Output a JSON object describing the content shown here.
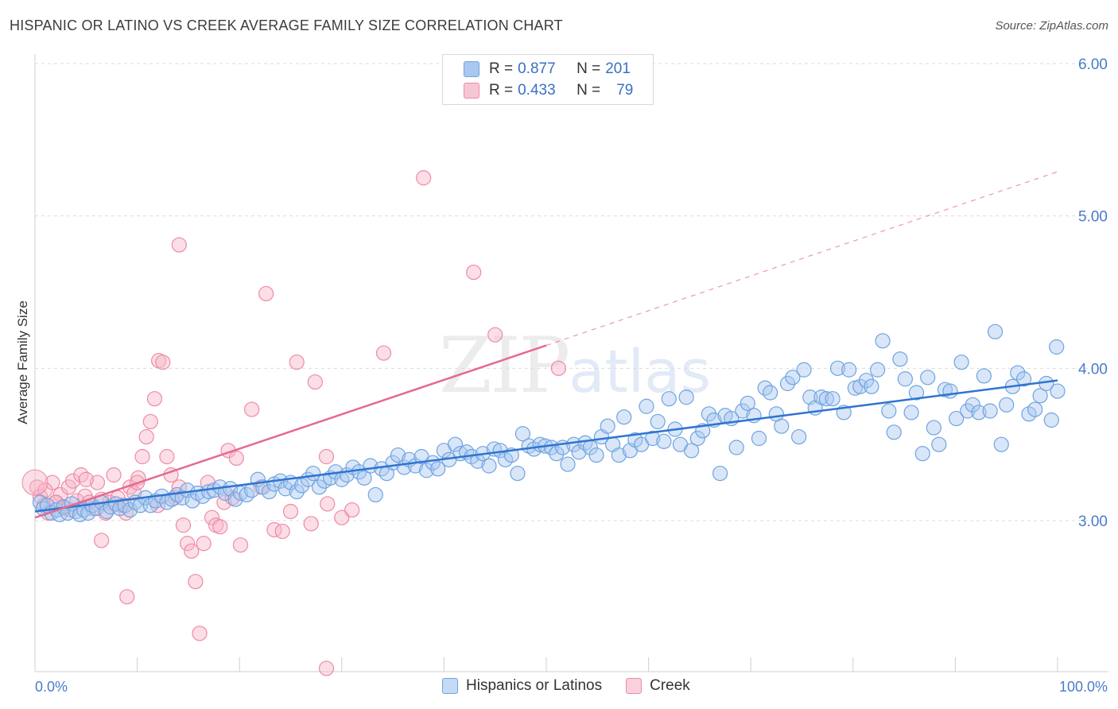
{
  "title": "HISPANIC OR LATINO VS CREEK AVERAGE FAMILY SIZE CORRELATION CHART",
  "source": "Source: ZipAtlas.com",
  "watermark": {
    "zip": "ZIP",
    "atlas": "atlas"
  },
  "legend_stats": [
    {
      "swatch_color": "#a9c8f0",
      "r_label": "R =",
      "r_value": "0.877",
      "n_label": "N =",
      "n_value": "201"
    },
    {
      "swatch_color": "#f7b6c8",
      "r_label": "R =",
      "r_value": "0.433",
      "n_label": "N =",
      "n_value": "79"
    }
  ],
  "bottom_legend": [
    {
      "label": "Hispanics or Latinos",
      "color": "#a9c8f0"
    },
    {
      "label": "Creek",
      "color": "#f7b6c8"
    }
  ],
  "chart_data": {
    "type": "scatter",
    "title": "HISPANIC OR LATINO VS CREEK AVERAGE FAMILY SIZE CORRELATION CHART",
    "xlabel": "",
    "ylabel": "Average Family Size",
    "x_tick_labels": [
      "0.0%",
      "100.0%"
    ],
    "xlim": [
      0,
      100
    ],
    "ylim": [
      2.0,
      6.1
    ],
    "y_ticks": [
      3.0,
      4.0,
      5.0,
      6.0
    ],
    "y_tick_labels": [
      "3.00",
      "4.00",
      "5.00",
      "6.00"
    ],
    "grid": true,
    "series": [
      {
        "name": "Hispanics or Latinos",
        "color": "#6fa3e0",
        "fill": "#a9c8f0",
        "trend": {
          "x0": 0,
          "y0": 3.06,
          "x1": 100,
          "y1": 3.92,
          "color": "#2f74d0"
        },
        "points": [
          [
            0.5,
            3.12
          ],
          [
            0.8,
            3.08
          ],
          [
            1.2,
            3.1
          ],
          [
            1.6,
            3.05
          ],
          [
            2.1,
            3.07
          ],
          [
            2.4,
            3.04
          ],
          [
            2.8,
            3.09
          ],
          [
            3.2,
            3.05
          ],
          [
            3.6,
            3.11
          ],
          [
            4.0,
            3.06
          ],
          [
            4.4,
            3.04
          ],
          [
            4.8,
            3.07
          ],
          [
            5.2,
            3.05
          ],
          [
            5.6,
            3.1
          ],
          [
            6.0,
            3.08
          ],
          [
            6.5,
            3.12
          ],
          [
            7.0,
            3.06
          ],
          [
            7.4,
            3.09
          ],
          [
            7.9,
            3.11
          ],
          [
            8.3,
            3.08
          ],
          [
            8.8,
            3.1
          ],
          [
            9.3,
            3.07
          ],
          [
            9.8,
            3.12
          ],
          [
            10.3,
            3.1
          ],
          [
            10.8,
            3.15
          ],
          [
            11.3,
            3.1
          ],
          [
            11.8,
            3.13
          ],
          [
            12.4,
            3.16
          ],
          [
            12.9,
            3.12
          ],
          [
            13.4,
            3.14
          ],
          [
            13.9,
            3.17
          ],
          [
            14.4,
            3.15
          ],
          [
            14.9,
            3.2
          ],
          [
            15.4,
            3.13
          ],
          [
            15.9,
            3.18
          ],
          [
            16.4,
            3.16
          ],
          [
            17.0,
            3.19
          ],
          [
            17.5,
            3.2
          ],
          [
            18.1,
            3.22
          ],
          [
            18.6,
            3.18
          ],
          [
            19.1,
            3.21
          ],
          [
            19.6,
            3.14
          ],
          [
            20.1,
            3.18
          ],
          [
            20.7,
            3.17
          ],
          [
            21.2,
            3.2
          ],
          [
            21.8,
            3.27
          ],
          [
            22.3,
            3.22
          ],
          [
            22.9,
            3.19
          ],
          [
            23.4,
            3.24
          ],
          [
            24.0,
            3.26
          ],
          [
            24.5,
            3.21
          ],
          [
            25.0,
            3.25
          ],
          [
            25.6,
            3.19
          ],
          [
            26.1,
            3.23
          ],
          [
            26.7,
            3.27
          ],
          [
            27.2,
            3.31
          ],
          [
            27.8,
            3.22
          ],
          [
            28.3,
            3.26
          ],
          [
            28.9,
            3.28
          ],
          [
            29.4,
            3.32
          ],
          [
            30.0,
            3.27
          ],
          [
            30.5,
            3.3
          ],
          [
            31.1,
            3.35
          ],
          [
            31.7,
            3.32
          ],
          [
            32.2,
            3.28
          ],
          [
            32.8,
            3.36
          ],
          [
            33.3,
            3.17
          ],
          [
            33.9,
            3.34
          ],
          [
            34.4,
            3.31
          ],
          [
            35.0,
            3.38
          ],
          [
            35.5,
            3.43
          ],
          [
            36.1,
            3.35
          ],
          [
            36.6,
            3.4
          ],
          [
            37.2,
            3.36
          ],
          [
            37.8,
            3.42
          ],
          [
            38.3,
            3.33
          ],
          [
            38.9,
            3.38
          ],
          [
            39.4,
            3.34
          ],
          [
            40.0,
            3.46
          ],
          [
            40.5,
            3.4
          ],
          [
            41.1,
            3.5
          ],
          [
            41.6,
            3.44
          ],
          [
            42.2,
            3.45
          ],
          [
            42.7,
            3.42
          ],
          [
            43.3,
            3.39
          ],
          [
            43.8,
            3.44
          ],
          [
            44.4,
            3.36
          ],
          [
            44.9,
            3.47
          ],
          [
            45.5,
            3.46
          ],
          [
            46.0,
            3.4
          ],
          [
            46.6,
            3.43
          ],
          [
            47.2,
            3.31
          ],
          [
            47.7,
            3.57
          ],
          [
            48.3,
            3.49
          ],
          [
            48.8,
            3.47
          ],
          [
            49.4,
            3.5
          ],
          [
            49.9,
            3.49
          ],
          [
            50.5,
            3.48
          ],
          [
            51.0,
            3.44
          ],
          [
            51.6,
            3.48
          ],
          [
            52.1,
            3.37
          ],
          [
            52.7,
            3.5
          ],
          [
            53.2,
            3.45
          ],
          [
            53.8,
            3.51
          ],
          [
            54.3,
            3.48
          ],
          [
            54.9,
            3.43
          ],
          [
            55.4,
            3.55
          ],
          [
            56.0,
            3.62
          ],
          [
            56.5,
            3.5
          ],
          [
            57.1,
            3.43
          ],
          [
            57.6,
            3.68
          ],
          [
            58.2,
            3.46
          ],
          [
            58.7,
            3.53
          ],
          [
            59.3,
            3.5
          ],
          [
            59.8,
            3.75
          ],
          [
            60.4,
            3.54
          ],
          [
            60.9,
            3.65
          ],
          [
            61.5,
            3.52
          ],
          [
            62.0,
            3.8
          ],
          [
            62.6,
            3.6
          ],
          [
            63.1,
            3.5
          ],
          [
            63.7,
            3.81
          ],
          [
            64.2,
            3.46
          ],
          [
            64.8,
            3.54
          ],
          [
            65.3,
            3.59
          ],
          [
            65.9,
            3.7
          ],
          [
            66.4,
            3.66
          ],
          [
            67.0,
            3.31
          ],
          [
            67.5,
            3.69
          ],
          [
            68.1,
            3.67
          ],
          [
            68.6,
            3.48
          ],
          [
            69.2,
            3.72
          ],
          [
            69.7,
            3.77
          ],
          [
            70.3,
            3.69
          ],
          [
            70.8,
            3.54
          ],
          [
            71.4,
            3.87
          ],
          [
            71.9,
            3.84
          ],
          [
            72.5,
            3.7
          ],
          [
            73.0,
            3.62
          ],
          [
            73.6,
            3.9
          ],
          [
            74.1,
            3.94
          ],
          [
            74.7,
            3.55
          ],
          [
            75.2,
            3.99
          ],
          [
            75.8,
            3.81
          ],
          [
            76.3,
            3.74
          ],
          [
            76.9,
            3.81
          ],
          [
            77.4,
            3.8
          ],
          [
            78.0,
            3.8
          ],
          [
            78.5,
            4.0
          ],
          [
            79.1,
            3.71
          ],
          [
            79.6,
            3.99
          ],
          [
            80.2,
            3.87
          ],
          [
            80.7,
            3.88
          ],
          [
            81.3,
            3.92
          ],
          [
            81.8,
            3.88
          ],
          [
            82.4,
            3.99
          ],
          [
            82.9,
            4.18
          ],
          [
            83.5,
            3.72
          ],
          [
            84.0,
            3.58
          ],
          [
            84.6,
            4.06
          ],
          [
            85.1,
            3.93
          ],
          [
            85.7,
            3.71
          ],
          [
            86.2,
            3.84
          ],
          [
            86.8,
            3.44
          ],
          [
            87.3,
            3.94
          ],
          [
            87.9,
            3.61
          ],
          [
            88.4,
            3.5
          ],
          [
            89.0,
            3.86
          ],
          [
            89.5,
            3.85
          ],
          [
            90.1,
            3.67
          ],
          [
            90.6,
            4.04
          ],
          [
            91.2,
            3.72
          ],
          [
            91.7,
            3.76
          ],
          [
            92.3,
            3.71
          ],
          [
            92.8,
            3.95
          ],
          [
            93.4,
            3.72
          ],
          [
            93.9,
            4.24
          ],
          [
            94.5,
            3.5
          ],
          [
            95.0,
            3.76
          ],
          [
            95.6,
            3.88
          ],
          [
            96.1,
            3.97
          ],
          [
            96.7,
            3.93
          ],
          [
            97.2,
            3.7
          ],
          [
            97.8,
            3.73
          ],
          [
            98.3,
            3.82
          ],
          [
            98.9,
            3.9
          ],
          [
            99.4,
            3.66
          ],
          [
            99.9,
            4.14
          ],
          [
            100.0,
            3.85
          ]
        ]
      },
      {
        "name": "Creek",
        "color": "#ee8aa6",
        "fill": "#f7b6c8",
        "trend": {
          "x0": 0,
          "y0": 3.02,
          "x1": 50,
          "y1": 4.15,
          "color": "#e56a8f",
          "dashed_to_x": 100,
          "dashed_to_y": 5.29
        },
        "points": [
          [
            0.2,
            3.22
          ],
          [
            0.5,
            3.16
          ],
          [
            0.9,
            3.1
          ],
          [
            1.3,
            3.05
          ],
          [
            1.7,
            3.25
          ],
          [
            2.1,
            3.12
          ],
          [
            2.5,
            3.17
          ],
          [
            2.9,
            3.08
          ],
          [
            3.3,
            3.22
          ],
          [
            3.7,
            3.26
          ],
          [
            4.1,
            3.13
          ],
          [
            4.5,
            3.3
          ],
          [
            4.9,
            3.16
          ],
          [
            5.3,
            3.12
          ],
          [
            5.7,
            3.08
          ],
          [
            6.1,
            3.25
          ],
          [
            6.5,
            3.14
          ],
          [
            6.9,
            3.05
          ],
          [
            7.3,
            3.12
          ],
          [
            7.7,
            3.3
          ],
          [
            8.1,
            3.15
          ],
          [
            8.5,
            3.1
          ],
          [
            8.9,
            3.05
          ],
          [
            9.3,
            3.22
          ],
          [
            9.7,
            3.18
          ],
          [
            10.1,
            3.28
          ],
          [
            10.5,
            3.42
          ],
          [
            10.9,
            3.55
          ],
          [
            11.3,
            3.65
          ],
          [
            11.7,
            3.8
          ],
          [
            12.1,
            4.05
          ],
          [
            12.5,
            4.04
          ],
          [
            12.9,
            3.42
          ],
          [
            13.3,
            3.3
          ],
          [
            13.7,
            3.15
          ],
          [
            14.1,
            3.22
          ],
          [
            14.5,
            2.97
          ],
          [
            14.9,
            2.85
          ],
          [
            15.3,
            2.8
          ],
          [
            15.7,
            2.6
          ],
          [
            16.1,
            2.26
          ],
          [
            16.5,
            2.85
          ],
          [
            16.9,
            3.25
          ],
          [
            17.3,
            3.02
          ],
          [
            17.7,
            2.97
          ],
          [
            18.1,
            2.96
          ],
          [
            18.5,
            3.12
          ],
          [
            18.9,
            3.46
          ],
          [
            19.3,
            3.15
          ],
          [
            19.7,
            3.41
          ],
          [
            20.1,
            2.84
          ],
          [
            14.1,
            4.81
          ],
          [
            21.2,
            3.73
          ],
          [
            22.1,
            3.22
          ],
          [
            22.6,
            4.49
          ],
          [
            23.4,
            2.94
          ],
          [
            24.2,
            2.93
          ],
          [
            25.0,
            3.06
          ],
          [
            25.6,
            4.04
          ],
          [
            27.0,
            2.98
          ],
          [
            27.4,
            3.91
          ],
          [
            28.5,
            3.42
          ],
          [
            28.6,
            3.11
          ],
          [
            30.0,
            3.02
          ],
          [
            31.0,
            3.07
          ],
          [
            34.1,
            4.1
          ],
          [
            38.0,
            5.25
          ],
          [
            42.9,
            4.63
          ],
          [
            45.0,
            4.22
          ],
          [
            51.2,
            4.0
          ],
          [
            28.5,
            2.03
          ],
          [
            9.0,
            2.5
          ],
          [
            6.5,
            2.87
          ],
          [
            10.0,
            3.25
          ],
          [
            12.0,
            3.1
          ],
          [
            5.0,
            3.27
          ],
          [
            3.5,
            3.07
          ],
          [
            2.0,
            3.12
          ],
          [
            1.0,
            3.2
          ]
        ]
      }
    ]
  }
}
